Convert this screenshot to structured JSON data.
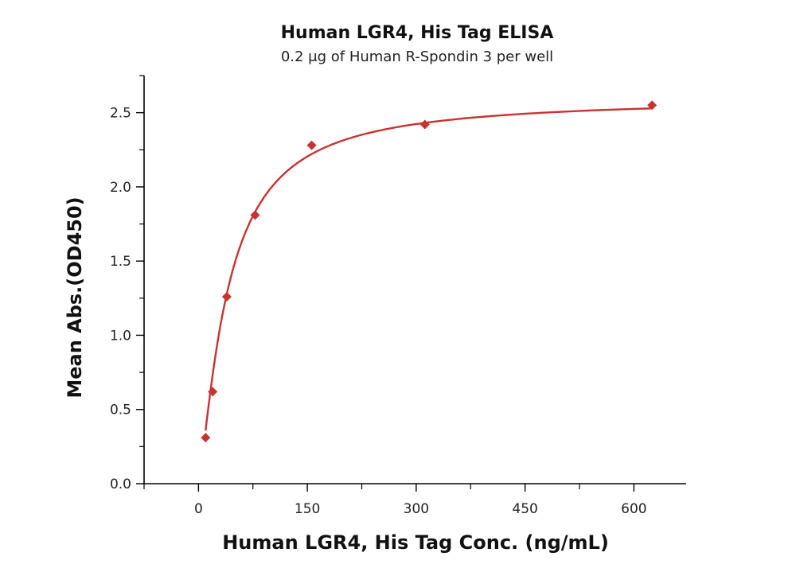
{
  "chart_data": {
    "type": "scatter",
    "title": "Human LGR4, His Tag ELISA",
    "subtitle": "0.2 μg of Human R-Spondin 3 per well",
    "xlabel": "Human LGR4, His Tag Conc. (ng/mL)",
    "ylabel": "Mean Abs.(OD450)",
    "xlim": [
      -75,
      672
    ],
    "ylim": [
      0,
      2.75
    ],
    "xticks": [
      0,
      150,
      300,
      450,
      600
    ],
    "xtick_labels": [
      "0",
      "150",
      "300",
      "450",
      "600"
    ],
    "yticks": [
      0,
      0.5,
      1.0,
      1.5,
      2.0,
      2.5
    ],
    "ytick_labels": [
      "0.0",
      "0.5",
      "1.0",
      "1.5",
      "2.0",
      "2.5"
    ],
    "grid": false,
    "marker": "diamond",
    "color": "#c83232",
    "series": [
      {
        "x": [
          9.77,
          19.5,
          39,
          78,
          156,
          312,
          625
        ],
        "y": [
          0.31,
          0.62,
          1.26,
          1.81,
          2.28,
          2.42,
          2.55
        ],
        "fit": "four-parameter logistic"
      }
    ]
  }
}
